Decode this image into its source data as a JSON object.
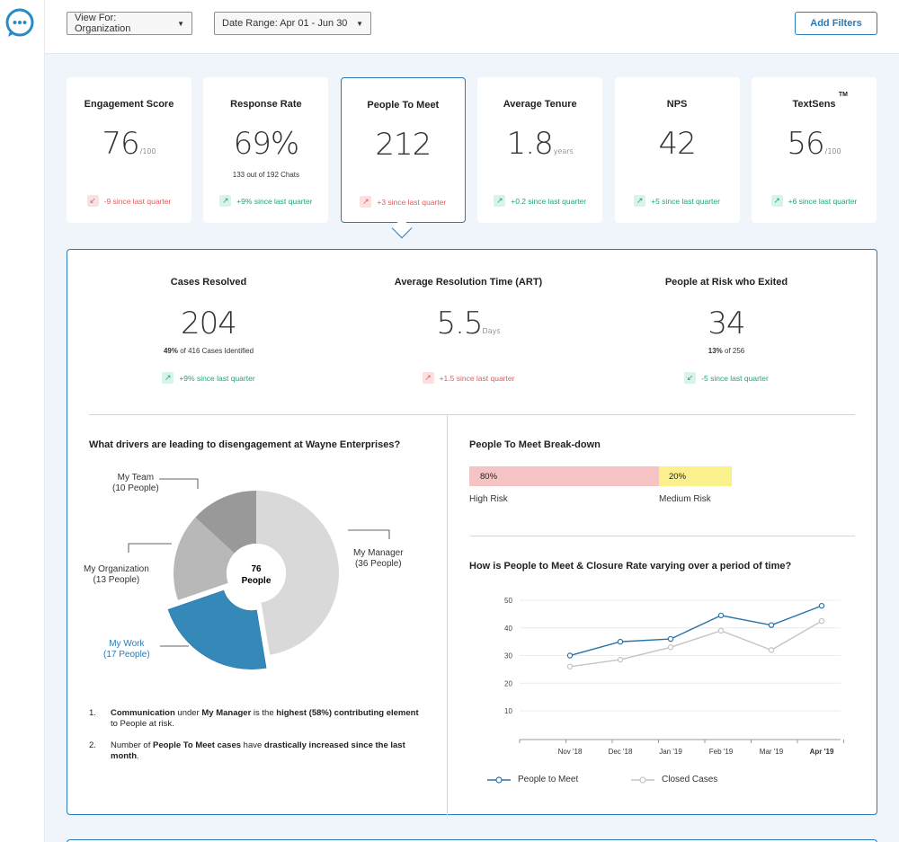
{
  "app": {
    "logo_icon": "chat-bubble-icon"
  },
  "filters": {
    "view_for": "View For: Organization",
    "date_range": "Date Range: Apr 01 - Jun 30",
    "add_filters": "Add Filters"
  },
  "kpis": [
    {
      "title": "Engagement Score",
      "value": "76",
      "unit": "/100",
      "sub": "",
      "delta": "-9 since last quarter",
      "trend": "down"
    },
    {
      "title": "Response Rate",
      "value": "69%",
      "unit": "",
      "sub": "133 out of 192 Chats",
      "delta": "+9% since last quarter",
      "trend": "up"
    },
    {
      "title": "People To Meet",
      "value": "212",
      "unit": "",
      "sub": "",
      "delta": "+3 since last quarter",
      "trend": "up-red",
      "active": true
    },
    {
      "title": "Average Tenure",
      "value": "1.8",
      "unit": "years",
      "sub": "",
      "delta": "+0.2 since last quarter",
      "trend": "up"
    },
    {
      "title": "NPS",
      "value": "42",
      "unit": "",
      "sub": "",
      "delta": "+5 since last quarter",
      "trend": "up"
    },
    {
      "title": "TextSens",
      "title_mark": "TM",
      "value": "56",
      "unit": "/100",
      "sub": "",
      "delta": "+6 since last quarter",
      "trend": "up"
    }
  ],
  "metrics": [
    {
      "title": "Cases Resolved",
      "value": "204",
      "unit": "",
      "sub_bold": "49%",
      "sub": " of 416 Cases Identified",
      "delta": "+9% since last quarter",
      "trend": "up"
    },
    {
      "title": "Average Resolution Time (ART)",
      "value": "5.5",
      "unit": "Days",
      "sub_bold": "",
      "sub": "",
      "delta": "+1.5 since last quarter",
      "trend": "up-red"
    },
    {
      "title": "People at Risk who Exited",
      "value": "34",
      "unit": "",
      "sub_bold": "13%",
      "sub": " of 256",
      "delta": "-5 since last quarter",
      "trend": "down-green"
    }
  ],
  "drivers": {
    "title": "What drivers are leading to disengagement at Wayne Enterprises?",
    "center_value": "76",
    "center_label": "People",
    "segments": [
      {
        "name": "My Manager",
        "count": "(36 People)",
        "value": 36,
        "color": "#d9d9d9"
      },
      {
        "name": "My Work",
        "count": "(17 People)",
        "value": 17,
        "color": "#3589b8"
      },
      {
        "name": "My Organization",
        "count": "(13 People)",
        "value": 13,
        "color": "#b8b8b8"
      },
      {
        "name": "My Team",
        "count": "(10 People)",
        "value": 10,
        "color": "#999999"
      }
    ]
  },
  "notes": [
    {
      "num": "1.",
      "parts": [
        [
          "Communication",
          true
        ],
        [
          " under ",
          false
        ],
        [
          "My Manager",
          true
        ],
        [
          " is the ",
          false
        ],
        [
          "highest (58%) contributing element",
          true
        ],
        [
          " to People at risk.",
          false
        ]
      ]
    },
    {
      "num": "2.",
      "parts": [
        [
          "Number of ",
          false
        ],
        [
          "People To Meet cases",
          true
        ],
        [
          " have ",
          false
        ],
        [
          "drastically increased since the last month",
          true
        ],
        [
          ".",
          false
        ]
      ]
    }
  ],
  "breakdown": {
    "title": "People To Meet Break-down",
    "high_pct": "80%",
    "medium_pct": "20%",
    "high_label": "High Risk",
    "medium_label": "Medium Risk"
  },
  "trend_chart": {
    "title": "How is People to Meet & Closure Rate varying over a period of time?",
    "legend": [
      "People to Meet",
      "Closed Cases"
    ]
  },
  "chart_data": {
    "type": "line",
    "categories": [
      "Nov '18",
      "Dec '18",
      "Jan '19",
      "Feb '19",
      "Mar '19",
      "Apr '19"
    ],
    "x": [
      0,
      0.5,
      1,
      1.5,
      2,
      2.5,
      3,
      3.5,
      4,
      4.5,
      5
    ],
    "series": [
      {
        "name": "People to Meet",
        "color": "#2a74a8",
        "values": [
          30,
          35,
          36,
          44.5,
          41,
          48
        ]
      },
      {
        "name": "Closed Cases",
        "color": "#c4c4c4",
        "values": [
          26,
          28.5,
          33,
          39,
          32,
          42.5
        ]
      }
    ],
    "yticks": [
      10,
      20,
      30,
      40,
      50
    ],
    "ylim": [
      0,
      50
    ],
    "bold_category": "Apr '19",
    "grid": true
  },
  "colors": {
    "accent": "#2a7ab3",
    "positive": "#1fa37a",
    "negative": "#e05c5c"
  }
}
